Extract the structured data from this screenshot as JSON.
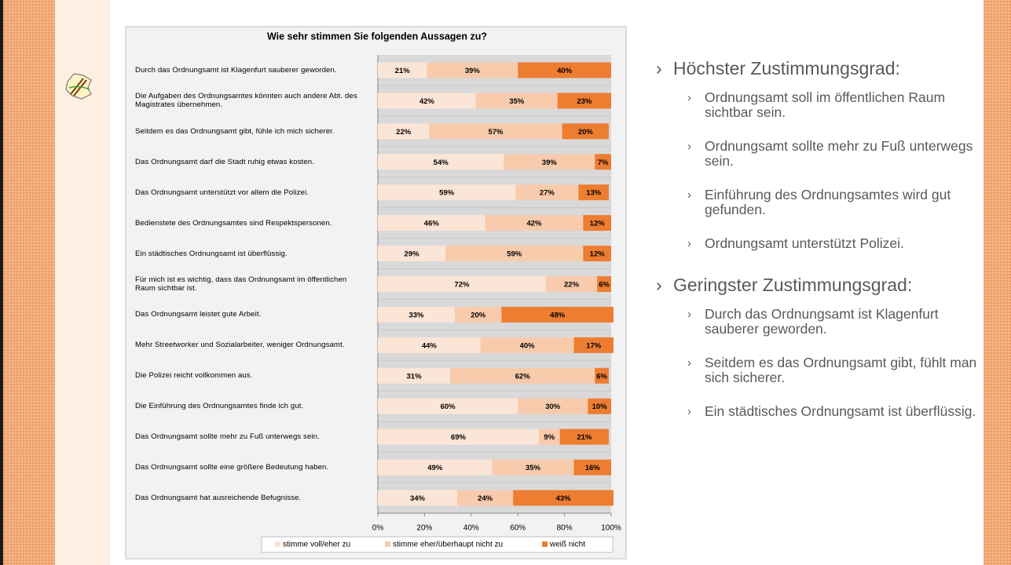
{
  "chart_data": {
    "type": "stacked-bar-horizontal",
    "title": "Wie sehr stimmen Sie folgenden Aussagen zu?",
    "categories": [
      "Durch das Ordnungsamt ist Klagenfurt sauberer geworden.",
      "Die Aufgaben des Ordnungsamtes könnten auch andere Abt. des Magistrates übernehmen.",
      "Seitdem es das Ordnungsamt gibt, fühle ich mich sicherer.",
      "Das Ordnungsamt darf die Stadt ruhig etwas kosten.",
      "Das Ordnungsamt unterstützt vor allem die Polizei.",
      "Bedienstete des Ordnungsamtes sind Respektspersonen.",
      "Ein städtisches Ordnungsamt ist überflüssig.",
      "Für mich ist es wichtig, dass das Ordnungsamt im öffentlichen Raum sichtbar ist.",
      "Das Ordnungsamt leistet gute Arbeit.",
      "Mehr Streetworker und Sozialarbeiter, weniger Ordnungsamt.",
      "Die Polizei reicht vollkommen aus.",
      "Die Einführung des Ordnungsamtes finde ich gut.",
      "Das Ordnungsamt sollte mehr zu Fuß unterwegs sein.",
      "Das Ordnungsamt sollte eine größere Bedeutung haben.",
      "Das Ordnungsamt hat ausreichende Befugnisse."
    ],
    "series": [
      {
        "name": "stimme voll/eher zu",
        "color": "#fbe5d6",
        "values": [
          21,
          42,
          22,
          54,
          59,
          46,
          29,
          72,
          33,
          44,
          31,
          60,
          69,
          49,
          34
        ],
        "value_labels": [
          "21%",
          "42%",
          "22%",
          "54%",
          "59%",
          "46%",
          "29%",
          "72%",
          "33%",
          "44%",
          "31%",
          "60%",
          "69%",
          "49%",
          "34%"
        ]
      },
      {
        "name": "stimme eher/überhaupt nicht zu",
        "color": "#f8cbad",
        "values": [
          39,
          35,
          57,
          39,
          27,
          42,
          59,
          22,
          20,
          40,
          62,
          30,
          9,
          35,
          24
        ],
        "value_labels": [
          "39%",
          "35%",
          "57%",
          "39%",
          "27%",
          "42%",
          "59%",
          "22%",
          "20%",
          "40%",
          "62%",
          "30%",
          "9%",
          "35%",
          "24%"
        ]
      },
      {
        "name": "weiß nicht",
        "color": "#ed7d31",
        "values": [
          40,
          23,
          20,
          7,
          13,
          12,
          12,
          6,
          48,
          17,
          6,
          10,
          21,
          16,
          43
        ],
        "value_labels": [
          "40%",
          "23%",
          "20%",
          "7%",
          "13%",
          "12%",
          "12%",
          "6%",
          "48%",
          "17%",
          "6%",
          "10%",
          "21%",
          "16%",
          "43%"
        ]
      }
    ],
    "xlim": [
      0,
      100
    ],
    "xticks": [
      {
        "value": 0,
        "label": "0%"
      },
      {
        "value": 20,
        "label": "20%"
      },
      {
        "value": 40,
        "label": "40%"
      },
      {
        "value": 60,
        "label": "60%"
      },
      {
        "value": 80,
        "label": "80%"
      },
      {
        "value": 100,
        "label": "100%"
      }
    ],
    "legend": "bottom"
  },
  "slide": {
    "sections": [
      {
        "heading": "Höchster Zustimmungsgrad:",
        "items": [
          "Ordnungsamt soll im öffentlichen Raum sichtbar sein.",
          "Ordnungsamt sollte mehr zu Fuß unterwegs sein.",
          "Einführung des Ordnungsamtes wird gut gefunden.",
          "Ordnungsamt unterstützt Polizei."
        ]
      },
      {
        "heading": "Geringster Zustimmungsgrad:",
        "items": [
          "Durch das Ordnungsamt ist Klagenfurt sauberer geworden.",
          "Seitdem es das Ordnungsamt gibt, fühlt man sich sicherer.",
          "Ein städtisches Ordnungsamt ist überflüssig."
        ]
      }
    ]
  }
}
